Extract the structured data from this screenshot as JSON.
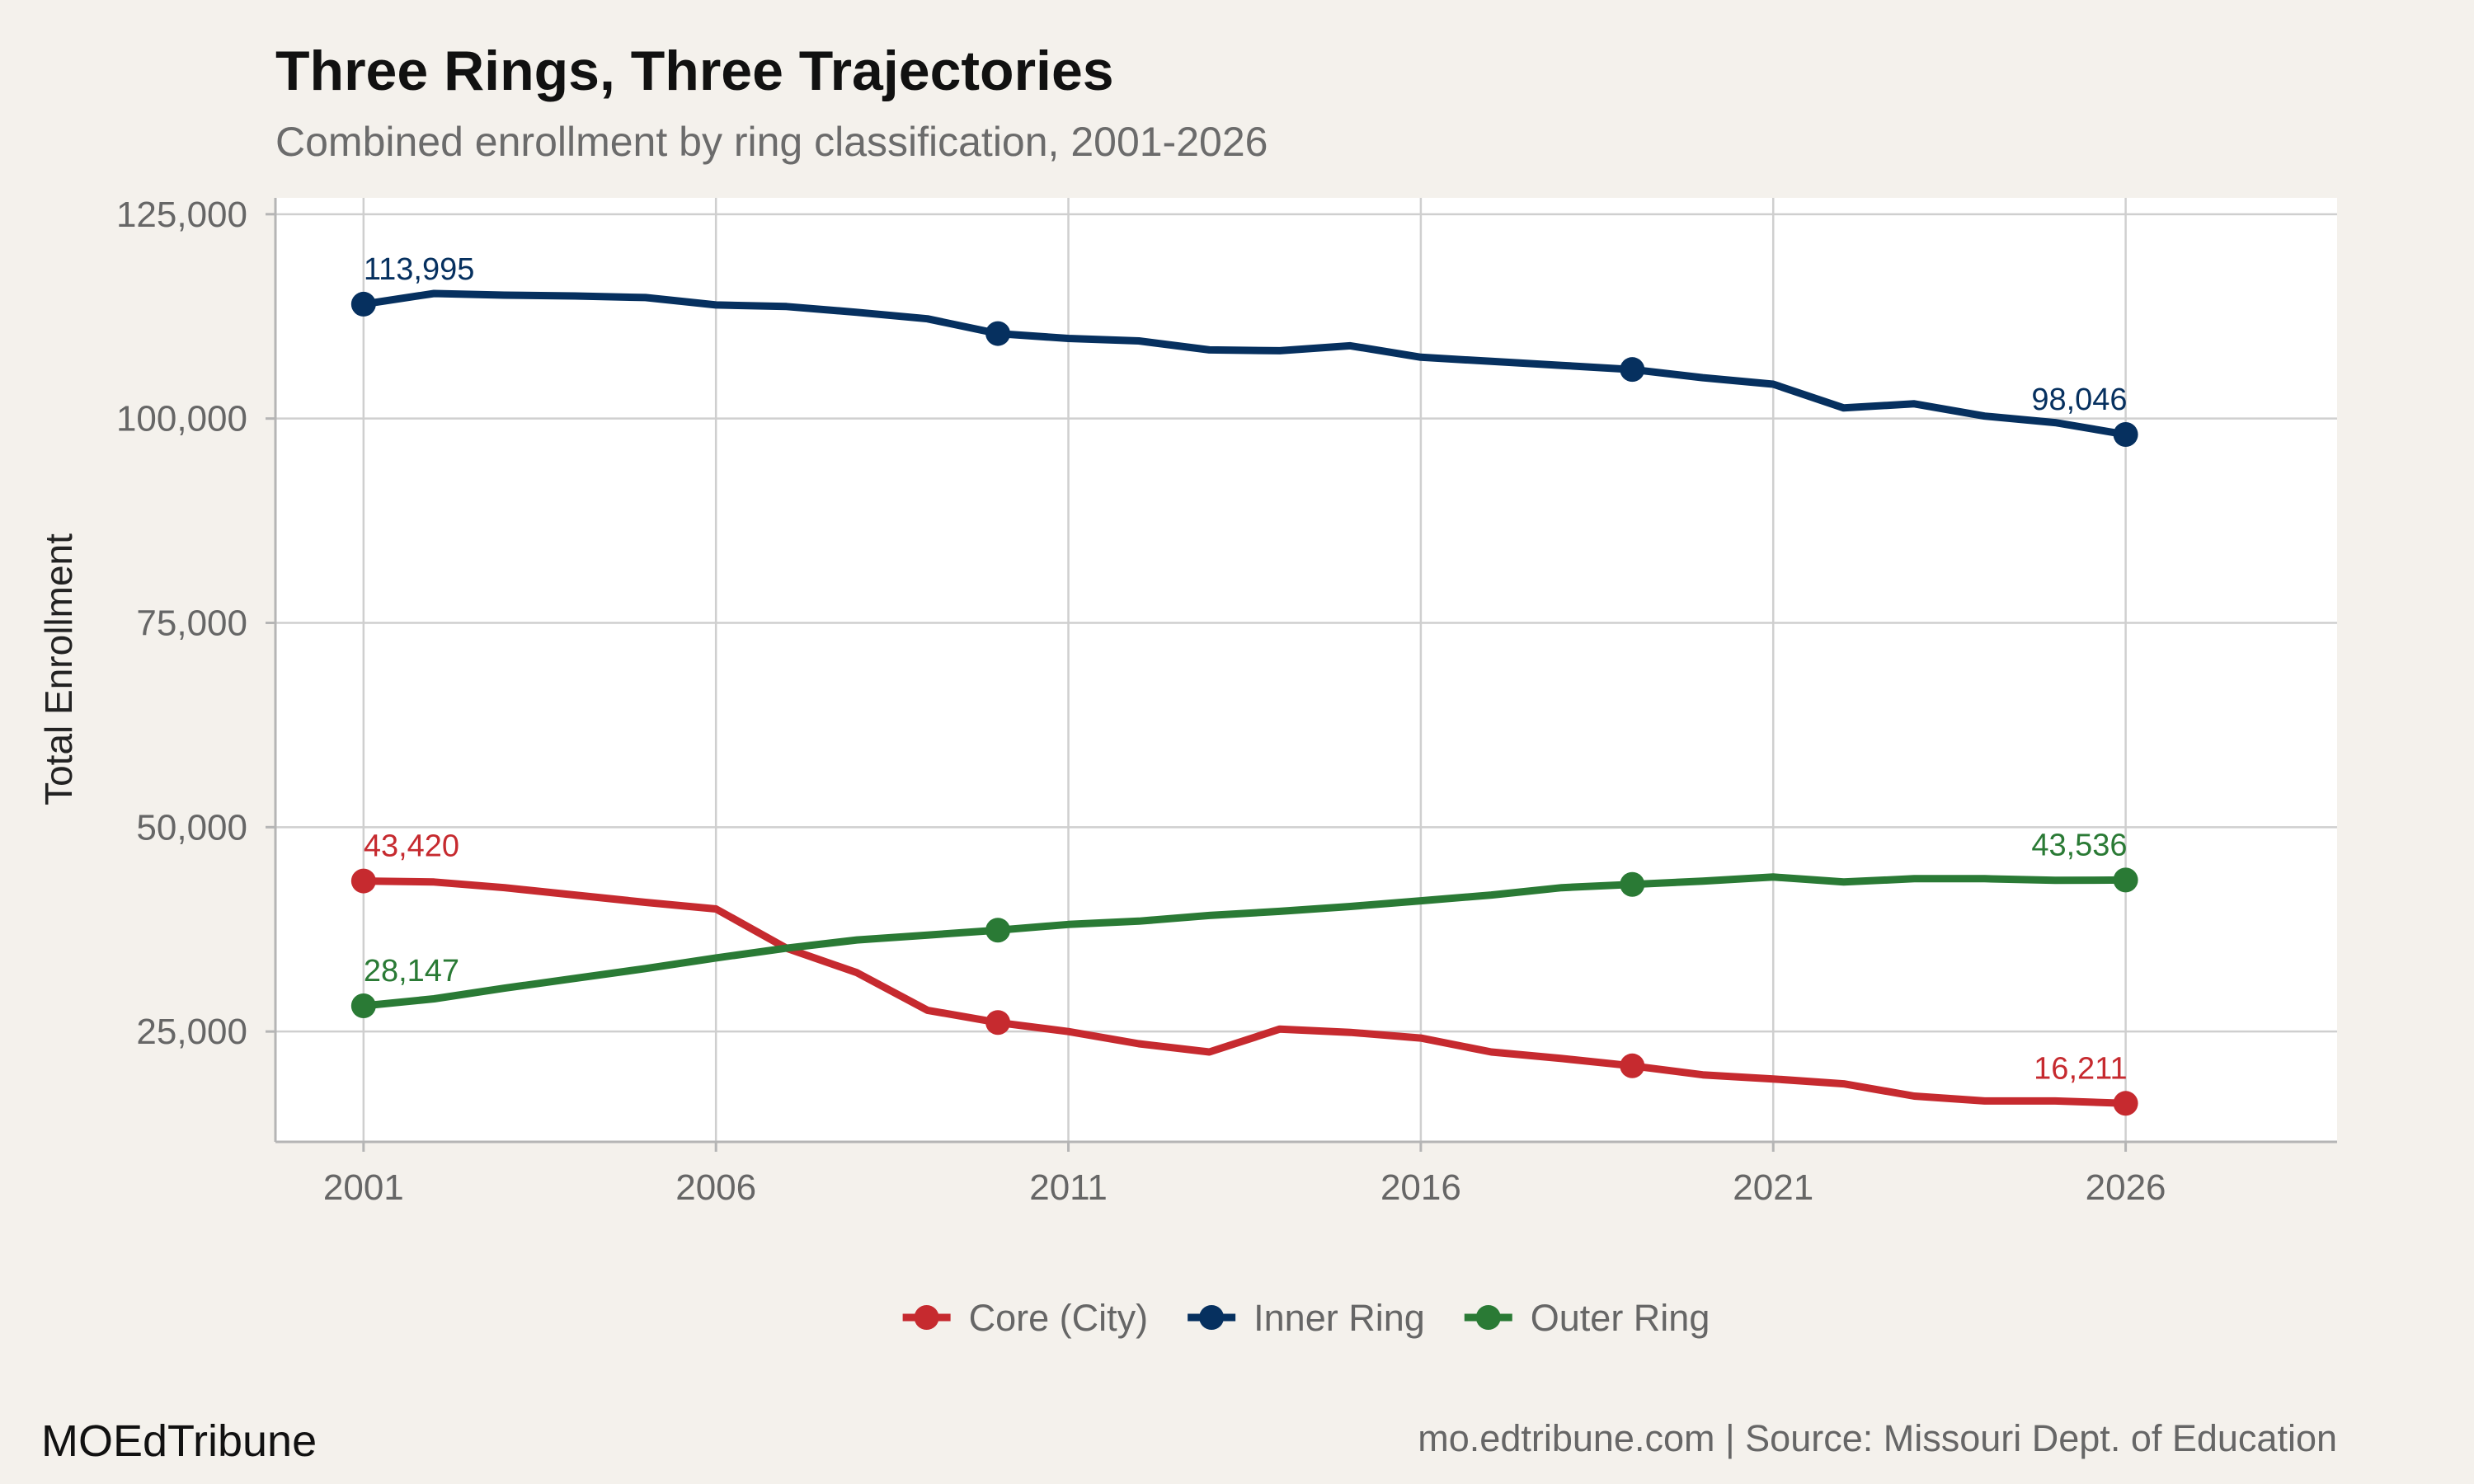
{
  "chart_data": {
    "type": "line",
    "title": "Three Rings, Three Trajectories",
    "subtitle": "Combined enrollment by ring classification, 2001-2026",
    "ylabel": "Total Enrollment",
    "xlabel": "",
    "xlim": [
      1999.75,
      2029
    ],
    "ylim": [
      11500,
      127000
    ],
    "x_ticks": [
      2001,
      2006,
      2011,
      2016,
      2021,
      2026
    ],
    "x_tick_labels": [
      "2001",
      "2006",
      "2011",
      "2016",
      "2021",
      "2026"
    ],
    "y_ticks": [
      25000,
      50000,
      75000,
      100000,
      125000
    ],
    "y_tick_labels": [
      "25,000",
      "50,000",
      "75,000",
      "100,000",
      "125,000"
    ],
    "grid": true,
    "legend_position": "bottom",
    "series": [
      {
        "name": "Core (City)",
        "color": "#c62a2f",
        "x": [
          2001,
          2002,
          2003,
          2004,
          2005,
          2006,
          2007,
          2008,
          2009,
          2010,
          2011,
          2012,
          2013,
          2014,
          2015,
          2016,
          2017,
          2018,
          2019,
          2020,
          2021,
          2022,
          2023,
          2024,
          2025,
          2026
        ],
        "y": [
          43420,
          43300,
          42600,
          41700,
          40800,
          40000,
          35200,
          32200,
          27600,
          26100,
          25000,
          23500,
          22500,
          25300,
          24900,
          24200,
          22500,
          21700,
          20800,
          19700,
          19200,
          18600,
          17100,
          16500,
          16500,
          16211
        ],
        "marker_x": [
          2001,
          2010,
          2019,
          2026
        ],
        "marker_y": [
          43420,
          26100,
          20800,
          16211
        ],
        "labels": [
          {
            "x": 2001,
            "y": 43420,
            "text": "43,420"
          },
          {
            "x": 2026,
            "y": 16211,
            "text": "16,211"
          }
        ]
      },
      {
        "name": "Inner Ring",
        "color": "#06305f",
        "x": [
          2001,
          2002,
          2003,
          2004,
          2005,
          2006,
          2007,
          2008,
          2009,
          2010,
          2011,
          2012,
          2013,
          2014,
          2015,
          2016,
          2017,
          2018,
          2019,
          2020,
          2021,
          2022,
          2023,
          2024,
          2025,
          2026
        ],
        "y": [
          113995,
          115300,
          115100,
          115000,
          114800,
          113900,
          113700,
          113000,
          112200,
          110400,
          109800,
          109500,
          108400,
          108300,
          108900,
          107500,
          107000,
          106500,
          106000,
          105000,
          104200,
          101300,
          101800,
          100300,
          99500,
          98046
        ],
        "marker_x": [
          2001,
          2010,
          2019,
          2026
        ],
        "marker_y": [
          113995,
          110400,
          106000,
          98046
        ],
        "labels": [
          {
            "x": 2001,
            "y": 113995,
            "text": "113,995"
          },
          {
            "x": 2026,
            "y": 98046,
            "text": "98,046"
          }
        ]
      },
      {
        "name": "Outer Ring",
        "color": "#2a7a35",
        "x": [
          2001,
          2002,
          2003,
          2004,
          2005,
          2006,
          2007,
          2008,
          2009,
          2010,
          2011,
          2012,
          2013,
          2014,
          2015,
          2016,
          2017,
          2018,
          2019,
          2020,
          2021,
          2022,
          2023,
          2024,
          2025,
          2026
        ],
        "y": [
          28147,
          29000,
          30300,
          31500,
          32700,
          34000,
          35200,
          36200,
          36800,
          37400,
          38100,
          38500,
          39200,
          39700,
          40300,
          41000,
          41700,
          42600,
          43000,
          43400,
          43900,
          43300,
          43700,
          43700,
          43500,
          43536
        ],
        "marker_x": [
          2001,
          2010,
          2019,
          2026
        ],
        "marker_y": [
          28147,
          37400,
          43000,
          43536
        ],
        "labels": [
          {
            "x": 2001,
            "y": 28147,
            "text": "28,147"
          },
          {
            "x": 2026,
            "y": 43536,
            "text": "43,536"
          }
        ]
      }
    ]
  },
  "footer": {
    "brand": "MOEdTribune",
    "source": "mo.edtribune.com | Source: Missouri Dept. of Education"
  }
}
